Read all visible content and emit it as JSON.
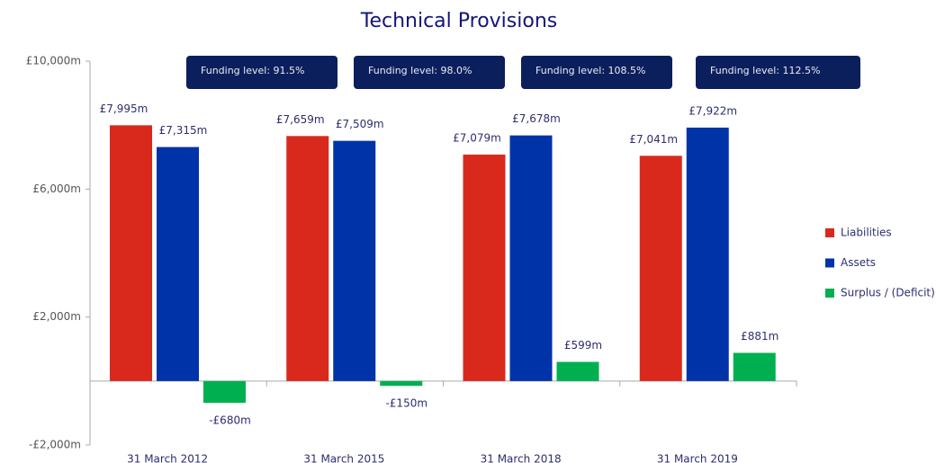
{
  "chart_data": {
    "type": "bar",
    "title": "Technical Provisions",
    "categories": [
      "31 March 2012",
      "31 March 2015",
      "31 March 2018",
      "31 March 2019"
    ],
    "series": [
      {
        "name": "Liabilities",
        "color": "#d9291c",
        "values": [
          7995,
          7659,
          7079,
          7041
        ],
        "value_labels": [
          "£7,995m",
          "£7,659m",
          "£7,079m",
          "£7,041m"
        ]
      },
      {
        "name": "Assets",
        "color": "#0033a8",
        "values": [
          7315,
          7509,
          7678,
          7922
        ],
        "value_labels": [
          "£7,315m",
          "£7,509m",
          "£7,678m",
          "£7,922m"
        ]
      },
      {
        "name": "Surplus / (Deficit)",
        "color": "#00b050",
        "values": [
          -680,
          -150,
          599,
          881
        ],
        "value_labels": [
          "-£680m",
          "-£150m",
          "£599m",
          "£881m"
        ]
      }
    ],
    "annotations": [
      "Funding level: 91.5%",
      "Funding level: 98.0%",
      "Funding level: 108.5%",
      "Funding level: 112.5%"
    ],
    "ylim": [
      -2000,
      10000
    ],
    "yticks": [
      {
        "value": -2000,
        "label": "-£2,000m"
      },
      {
        "value": 2000,
        "label": "£2,000m"
      },
      {
        "value": 6000,
        "label": "£6,000m"
      },
      {
        "value": 10000,
        "label": "£10,000m"
      }
    ],
    "grid": false,
    "legend": "right"
  }
}
